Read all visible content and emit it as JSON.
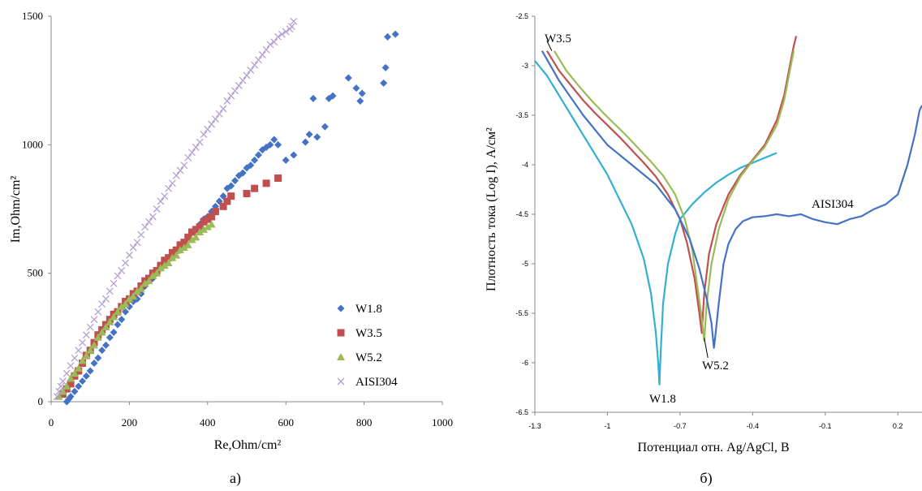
{
  "chart_data": [
    {
      "type": "scatter",
      "xlabel": "Re,Ohm/cm²",
      "ylabel": "Im,Ohm/cm²",
      "xlim": [
        0,
        1000
      ],
      "ylim": [
        0,
        1500
      ],
      "xticks": [
        "0",
        "200",
        "400",
        "600",
        "800",
        "1000"
      ],
      "yticks": [
        "0",
        "500",
        "1000",
        "1500"
      ],
      "caption": "а)",
      "legend": "bottom-right",
      "grid": false,
      "series": [
        {
          "name": "W1.8",
          "marker": "diamond",
          "color": "#4472C4",
          "x": [
            40,
            45,
            50,
            60,
            70,
            80,
            90,
            100,
            110,
            120,
            130,
            140,
            150,
            160,
            170,
            180,
            190,
            200,
            210,
            220,
            230,
            240,
            250,
            260,
            270,
            280,
            290,
            300,
            310,
            320,
            330,
            340,
            350,
            360,
            370,
            380,
            390,
            400,
            410,
            420,
            430,
            440,
            450,
            460,
            470,
            480,
            490,
            500,
            510,
            520,
            530,
            540,
            550,
            560,
            570,
            580,
            600,
            620,
            650,
            660,
            670,
            680,
            700,
            710,
            720,
            760,
            780,
            790,
            795,
            850,
            855,
            860,
            880
          ],
          "y": [
            0,
            10,
            20,
            40,
            60,
            80,
            100,
            120,
            150,
            170,
            200,
            220,
            250,
            270,
            300,
            320,
            350,
            370,
            390,
            400,
            420,
            450,
            470,
            480,
            500,
            520,
            540,
            560,
            570,
            590,
            610,
            620,
            640,
            660,
            670,
            690,
            710,
            720,
            740,
            760,
            780,
            800,
            830,
            840,
            860,
            880,
            890,
            910,
            920,
            940,
            960,
            980,
            990,
            1000,
            1020,
            1000,
            940,
            960,
            1010,
            1040,
            1180,
            1030,
            1070,
            1180,
            1190,
            1260,
            1220,
            1170,
            1200,
            1240,
            1300,
            1420,
            1430
          ]
        },
        {
          "name": "W3.5",
          "marker": "square",
          "color": "#C0504D",
          "x": [
            30,
            40,
            50,
            60,
            70,
            80,
            90,
            100,
            110,
            120,
            130,
            140,
            150,
            160,
            170,
            180,
            190,
            200,
            210,
            220,
            230,
            240,
            250,
            260,
            270,
            280,
            290,
            300,
            310,
            320,
            330,
            340,
            350,
            360,
            370,
            380,
            390,
            400,
            410,
            420,
            440,
            450,
            460,
            500,
            520,
            550,
            580
          ],
          "y": [
            30,
            50,
            70,
            100,
            120,
            150,
            180,
            200,
            230,
            260,
            280,
            300,
            320,
            340,
            350,
            370,
            390,
            400,
            420,
            430,
            450,
            470,
            480,
            500,
            510,
            530,
            550,
            560,
            580,
            590,
            610,
            620,
            640,
            660,
            670,
            680,
            700,
            710,
            720,
            740,
            760,
            780,
            800,
            810,
            830,
            850,
            870
          ]
        },
        {
          "name": "W5.2",
          "marker": "triangle",
          "color": "#9BBB59",
          "x": [
            20,
            30,
            40,
            50,
            60,
            70,
            80,
            90,
            100,
            110,
            120,
            130,
            140,
            150,
            160,
            170,
            180,
            190,
            200,
            210,
            220,
            230,
            240,
            250,
            260,
            270,
            280,
            290,
            300,
            310,
            320,
            330,
            340,
            350,
            360,
            370,
            380,
            390,
            400,
            410
          ],
          "y": [
            20,
            40,
            60,
            90,
            110,
            130,
            160,
            180,
            200,
            220,
            250,
            270,
            290,
            310,
            330,
            350,
            370,
            380,
            400,
            410,
            430,
            440,
            460,
            470,
            490,
            500,
            520,
            530,
            540,
            560,
            570,
            590,
            600,
            610,
            630,
            640,
            660,
            670,
            680,
            690
          ]
        },
        {
          "name": "AISI304",
          "marker": "x",
          "color": "#B4A0D2",
          "x": [
            15,
            20,
            25,
            30,
            40,
            50,
            60,
            70,
            80,
            90,
            100,
            110,
            120,
            130,
            140,
            150,
            160,
            170,
            180,
            190,
            200,
            210,
            220,
            230,
            240,
            250,
            260,
            270,
            280,
            290,
            300,
            310,
            320,
            330,
            340,
            350,
            360,
            370,
            380,
            390,
            400,
            410,
            420,
            430,
            440,
            450,
            460,
            470,
            480,
            490,
            500,
            510,
            520,
            530,
            540,
            550,
            560,
            570,
            580,
            590,
            600,
            610,
            615,
            620
          ],
          "y": [
            20,
            40,
            60,
            80,
            110,
            140,
            170,
            200,
            230,
            260,
            290,
            320,
            350,
            380,
            400,
            430,
            460,
            490,
            510,
            540,
            570,
            600,
            620,
            650,
            680,
            700,
            720,
            750,
            780,
            800,
            830,
            850,
            880,
            900,
            920,
            950,
            970,
            990,
            1010,
            1040,
            1060,
            1080,
            1100,
            1120,
            1140,
            1170,
            1190,
            1210,
            1230,
            1250,
            1270,
            1290,
            1310,
            1330,
            1350,
            1370,
            1390,
            1400,
            1420,
            1430,
            1440,
            1450,
            1460,
            1480
          ]
        }
      ]
    },
    {
      "type": "line",
      "xlabel": "Потенциал отн. Ag/AgCl, В",
      "ylabel": "Плотность тока (Log I), А/см²",
      "xlim": [
        -1.3,
        0.3
      ],
      "ylim": [
        -6.5,
        -2.5
      ],
      "xticks": [
        "-1.3",
        "-1",
        "-0.7",
        "-0.4",
        "-0.1",
        "0.2"
      ],
      "yticks": [
        "-2.5",
        "-3",
        "-3.5",
        "-4",
        "-4.5",
        "-5",
        "-5.5",
        "-6",
        "-6.5"
      ],
      "caption": "б)",
      "grid": false,
      "annotations": [
        "W3.5",
        "W5.2",
        "W1.8",
        "AISI304"
      ],
      "series": [
        {
          "name": "W1.8",
          "color": "#31B0D0",
          "x": [
            -1.3,
            -1.25,
            -1.2,
            -1.15,
            -1.1,
            -1.05,
            -1.0,
            -0.95,
            -0.9,
            -0.85,
            -0.82,
            -0.8,
            -0.79,
            -0.785,
            -0.78,
            -0.77,
            -0.75,
            -0.72,
            -0.7,
            -0.65,
            -0.6,
            -0.55,
            -0.5,
            -0.45,
            -0.4,
            -0.35,
            -0.3
          ],
          "y": [
            -2.95,
            -3.1,
            -3.3,
            -3.5,
            -3.7,
            -3.9,
            -4.1,
            -4.35,
            -4.6,
            -4.95,
            -5.3,
            -5.7,
            -6.0,
            -6.22,
            -5.9,
            -5.4,
            -5.0,
            -4.7,
            -4.55,
            -4.4,
            -4.28,
            -4.18,
            -4.1,
            -4.03,
            -3.98,
            -3.93,
            -3.88
          ]
        },
        {
          "name": "W3.5",
          "color": "#C0504D",
          "x": [
            -1.25,
            -1.2,
            -1.15,
            -1.1,
            -1.05,
            -1.0,
            -0.95,
            -0.9,
            -0.85,
            -0.8,
            -0.75,
            -0.7,
            -0.67,
            -0.64,
            -0.62,
            -0.61,
            -0.6,
            -0.58,
            -0.55,
            -0.5,
            -0.45,
            -0.4,
            -0.35,
            -0.3,
            -0.27,
            -0.25,
            -0.23,
            -0.22
          ],
          "y": [
            -2.85,
            -3.05,
            -3.2,
            -3.35,
            -3.48,
            -3.6,
            -3.72,
            -3.85,
            -3.98,
            -4.12,
            -4.3,
            -4.55,
            -4.8,
            -5.15,
            -5.5,
            -5.7,
            -5.3,
            -4.9,
            -4.6,
            -4.3,
            -4.1,
            -3.95,
            -3.8,
            -3.55,
            -3.3,
            -3.05,
            -2.8,
            -2.7
          ]
        },
        {
          "name": "W5.2",
          "color": "#9BBB59",
          "x": [
            -1.22,
            -1.17,
            -1.12,
            -1.07,
            -1.02,
            -0.97,
            -0.92,
            -0.87,
            -0.82,
            -0.77,
            -0.72,
            -0.68,
            -0.65,
            -0.63,
            -0.61,
            -0.6,
            -0.59,
            -0.57,
            -0.54,
            -0.5,
            -0.45,
            -0.4,
            -0.35,
            -0.3,
            -0.27,
            -0.25,
            -0.23
          ],
          "y": [
            -2.85,
            -3.05,
            -3.2,
            -3.34,
            -3.47,
            -3.59,
            -3.71,
            -3.84,
            -3.97,
            -4.11,
            -4.3,
            -4.55,
            -4.85,
            -5.2,
            -5.55,
            -5.78,
            -5.4,
            -5.0,
            -4.65,
            -4.35,
            -4.12,
            -3.96,
            -3.82,
            -3.6,
            -3.35,
            -3.1,
            -2.85
          ]
        },
        {
          "name": "AISI304",
          "color": "#4472C4",
          "x": [
            -1.27,
            -1.2,
            -1.1,
            -1.0,
            -0.9,
            -0.8,
            -0.72,
            -0.66,
            -0.62,
            -0.59,
            -0.57,
            -0.56,
            -0.555,
            -0.54,
            -0.52,
            -0.5,
            -0.47,
            -0.44,
            -0.4,
            -0.35,
            -0.3,
            -0.25,
            -0.2,
            -0.15,
            -0.1,
            -0.05,
            0.0,
            0.05,
            0.1,
            0.15,
            0.2,
            0.24,
            0.27,
            0.29,
            0.3
          ],
          "y": [
            -2.85,
            -3.15,
            -3.5,
            -3.8,
            -4.0,
            -4.2,
            -4.45,
            -4.75,
            -5.05,
            -5.35,
            -5.6,
            -5.85,
            -5.75,
            -5.4,
            -5.0,
            -4.8,
            -4.65,
            -4.57,
            -4.53,
            -4.52,
            -4.5,
            -4.52,
            -4.5,
            -4.55,
            -4.58,
            -4.6,
            -4.55,
            -4.52,
            -4.45,
            -4.4,
            -4.3,
            -4.0,
            -3.7,
            -3.45,
            -3.4
          ]
        }
      ]
    }
  ]
}
